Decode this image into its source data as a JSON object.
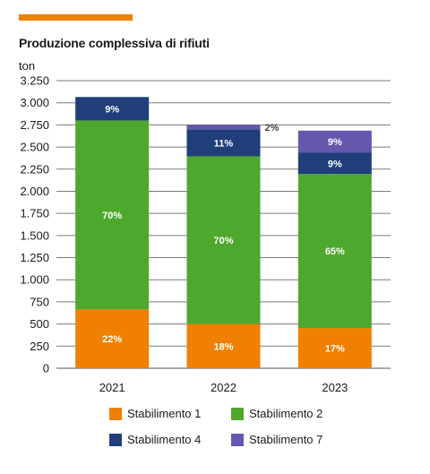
{
  "header": {
    "accent_color": "#f08000"
  },
  "chart_data": {
    "type": "bar",
    "stacked": true,
    "title": "Produzione complessiva di rifiuti",
    "ylabel": "ton",
    "xlabel": "",
    "ylim": [
      0,
      3250
    ],
    "yticks": [
      0,
      250,
      500,
      750,
      1000,
      1250,
      1500,
      1750,
      2000,
      2250,
      2500,
      2750,
      3000,
      3250
    ],
    "ytick_labels": [
      "0",
      "250",
      "500",
      "750",
      "1.000",
      "1.250",
      "1.500",
      "1.750",
      "2.000",
      "2.250",
      "2.500",
      "2.750",
      "3.000",
      "3.250"
    ],
    "categories": [
      "2021",
      "2022",
      "2023"
    ],
    "grid": true,
    "legend_position": "bottom",
    "series": [
      {
        "name": "Stabilimento 1",
        "color": "#f08000",
        "values": [
          665,
          500,
          455
        ],
        "labels": [
          "22%",
          "18%",
          "17%"
        ]
      },
      {
        "name": "Stabilimento 2",
        "color": "#4fa82e",
        "values": [
          2135,
          1895,
          1740
        ],
        "labels": [
          "70%",
          "70%",
          "65%"
        ]
      },
      {
        "name": "Stabilimento 4",
        "color": "#1f3e7a",
        "values": [
          265,
          305,
          240
        ],
        "labels": [
          "9%",
          "11%",
          "9%"
        ]
      },
      {
        "name": "Stabilimento 7",
        "color": "#6557ad",
        "values": [
          0,
          50,
          250
        ],
        "labels": [
          "",
          "2%",
          "9%"
        ]
      }
    ]
  }
}
